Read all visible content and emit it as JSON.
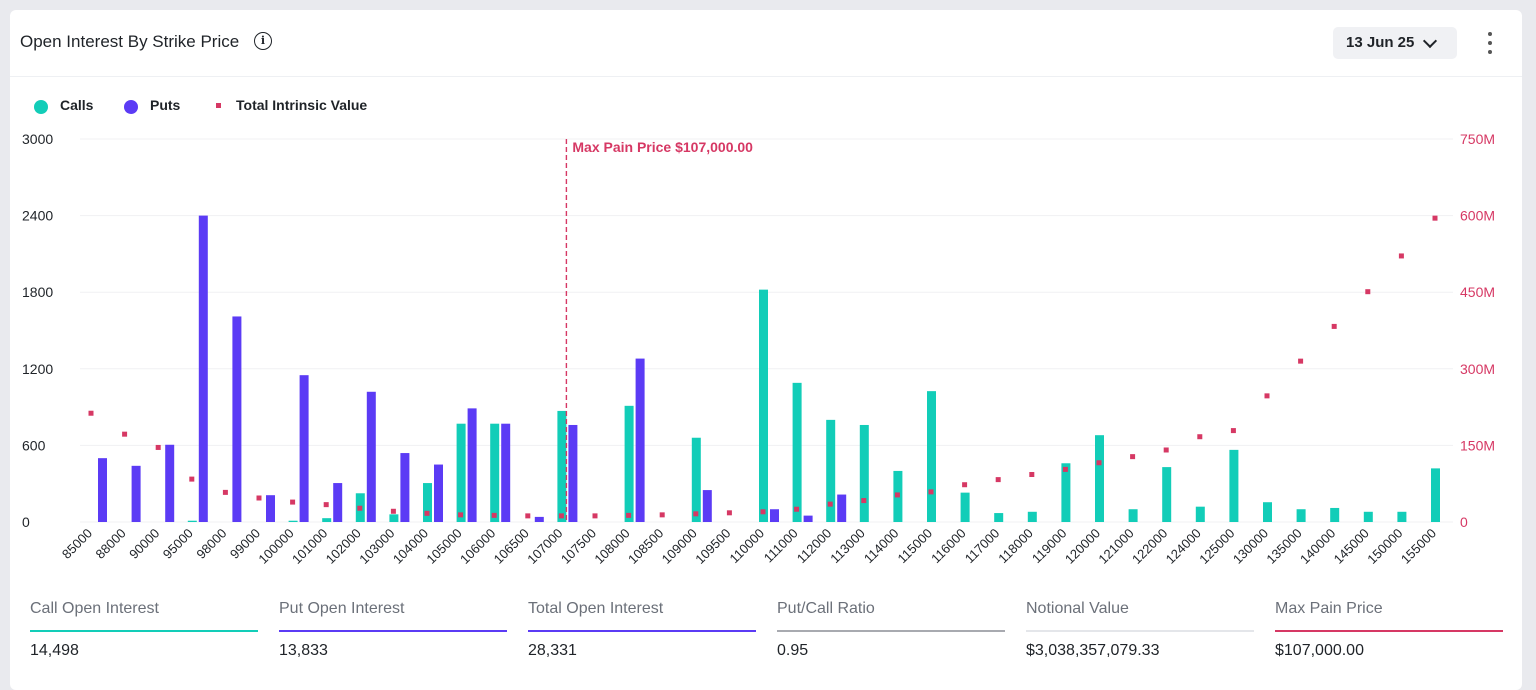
{
  "header": {
    "title": "Open Interest By Strike Price",
    "date_selected": "13 Jun 25"
  },
  "legend": {
    "calls": "Calls",
    "puts": "Puts",
    "intrinsic": "Total Intrinsic Value"
  },
  "colors": {
    "calls": "#12cdb8",
    "puts": "#5b3bf5",
    "intrinsic": "#d63864",
    "grid": "#f0f1f3",
    "axis_right": "#d63864"
  },
  "chart_data": {
    "type": "bar",
    "categories": [
      "85000",
      "88000",
      "90000",
      "95000",
      "98000",
      "99000",
      "100000",
      "101000",
      "102000",
      "103000",
      "104000",
      "105000",
      "106000",
      "106500",
      "107000",
      "107500",
      "108000",
      "108500",
      "109000",
      "109500",
      "110000",
      "111000",
      "112000",
      "113000",
      "114000",
      "115000",
      "116000",
      "117000",
      "118000",
      "119000",
      "120000",
      "121000",
      "122000",
      "124000",
      "125000",
      "130000",
      "135000",
      "140000",
      "145000",
      "150000",
      "155000"
    ],
    "series": [
      {
        "name": "Calls",
        "type": "bar",
        "axis": "left",
        "values": [
          0,
          0,
          0,
          10,
          0,
          0,
          10,
          30,
          225,
          60,
          305,
          770,
          770,
          0,
          870,
          0,
          910,
          0,
          660,
          0,
          1820,
          1090,
          800,
          760,
          400,
          1025,
          230,
          70,
          80,
          460,
          680,
          100,
          430,
          120,
          565,
          155,
          100,
          110,
          80,
          80,
          420
        ]
      },
      {
        "name": "Puts",
        "type": "bar",
        "axis": "left",
        "values": [
          500,
          440,
          605,
          2400,
          1610,
          210,
          1150,
          305,
          1020,
          540,
          450,
          890,
          770,
          40,
          760,
          0,
          1280,
          0,
          250,
          0,
          100,
          50,
          215,
          0,
          0,
          0,
          0,
          0,
          0,
          0,
          0,
          0,
          0,
          0,
          0,
          0,
          0,
          0,
          0,
          0,
          0
        ]
      },
      {
        "name": "Total Intrinsic Value",
        "type": "scatter",
        "axis": "right",
        "values": [
          213,
          172,
          146,
          84,
          58,
          47,
          39,
          34,
          27,
          21,
          17,
          14,
          13,
          12,
          12,
          12,
          13,
          14,
          16,
          18,
          20,
          25,
          35,
          42,
          53,
          59,
          73,
          83,
          93,
          103,
          116,
          128,
          141,
          167,
          179,
          247,
          315,
          383,
          451,
          521,
          595
        ]
      }
    ],
    "ylim": [
      0,
      3000
    ],
    "yticks": [
      0,
      600,
      1200,
      1800,
      2400,
      3000
    ],
    "ylim_right": [
      0,
      750
    ],
    "yticks_right_labels": [
      "0",
      "150M",
      "300M",
      "450M",
      "600M",
      "750M"
    ],
    "annotation": {
      "label": "Max Pain Price $107,000.00",
      "category": "107000"
    },
    "grid": true,
    "legend_position": "top-left"
  },
  "stats": [
    {
      "label": "Call Open Interest",
      "value": "14,498",
      "color": "#12cdb8"
    },
    {
      "label": "Put Open Interest",
      "value": "13,833",
      "color": "#5b3bf5"
    },
    {
      "label": "Total Open Interest",
      "value": "28,331",
      "color": "#5b3bf5"
    },
    {
      "label": "Put/Call Ratio",
      "value": "0.95",
      "color": "#a8aab0"
    },
    {
      "label": "Notional Value",
      "value": "$3,038,357,079.33",
      "color": "#e4e6ea"
    },
    {
      "label": "Max Pain Price",
      "value": "$107,000.00",
      "color": "#d63864"
    }
  ]
}
